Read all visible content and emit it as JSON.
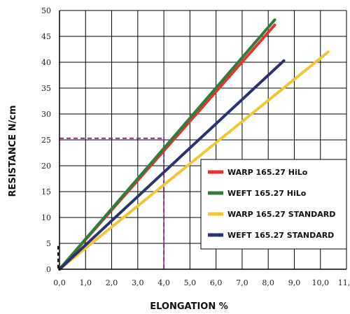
{
  "chart_data": {
    "type": "line",
    "xlabel": "ELONGATION %",
    "ylabel": "RESISTANCE N/cm",
    "xlim": [
      0,
      11
    ],
    "ylim": [
      0,
      50
    ],
    "x_ticks": [
      "0,0",
      "1,0",
      "2,0",
      "3,0",
      "4,0",
      "5,0",
      "6,0",
      "7,0",
      "8,0",
      "9,0",
      "10,0",
      "11,0"
    ],
    "y_ticks": [
      "0",
      "5",
      "10",
      "15",
      "20",
      "25",
      "30",
      "35",
      "40",
      "45",
      "50"
    ],
    "grid": true,
    "legend_position": "bottom-right",
    "series": [
      {
        "name": "WARP 165.27 HiLo",
        "color": "#e8322c",
        "points": [
          [
            0,
            0
          ],
          [
            8.25,
            47.2
          ]
        ]
      },
      {
        "name": "WEFT 165.27 HiLo",
        "color": "#2e7d3b",
        "points": [
          [
            0,
            0
          ],
          [
            8.25,
            48.2
          ]
        ]
      },
      {
        "name": "WARP 165.27 STANDARD",
        "color": "#f2c736",
        "points": [
          [
            0,
            0
          ],
          [
            10.3,
            42.0
          ]
        ]
      },
      {
        "name": "WEFT 165.27 STANDARD",
        "color": "#2b3270",
        "points": [
          [
            0,
            0
          ],
          [
            8.6,
            40.3
          ]
        ]
      }
    ],
    "annotations": [
      {
        "type": "dashed-reference",
        "color": "#8b2a8b",
        "x": 4.0,
        "y": 25.3
      }
    ]
  }
}
